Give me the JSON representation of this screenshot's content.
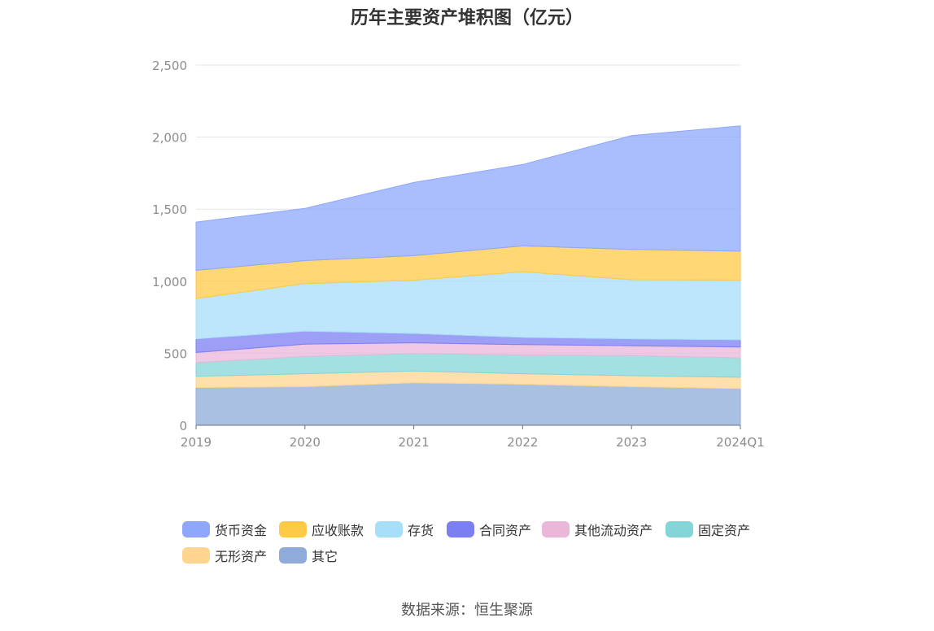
{
  "chart_data": {
    "type": "area",
    "title": "历年主要资产堆积图（亿元）",
    "stacked": true,
    "categories": [
      "2019",
      "2020",
      "2021",
      "2022",
      "2023",
      "2024Q1"
    ],
    "ylim": [
      0,
      2500
    ],
    "yticks": [
      "0",
      "500",
      "1,000",
      "1,500",
      "2,000",
      "2,500"
    ],
    "grid": true,
    "legend_position": "bottom",
    "series": [
      {
        "name": "其它",
        "color": "#8eabd9",
        "values": [
          262,
          268,
          295,
          285,
          268,
          255
        ]
      },
      {
        "name": "无形资产",
        "color": "#ffd591",
        "values": [
          78,
          90,
          82,
          73,
          76,
          78
        ]
      },
      {
        "name": "固定资产",
        "color": "#84d5d8",
        "values": [
          95,
          120,
          120,
          130,
          140,
          135
        ]
      },
      {
        "name": "其他流动资产",
        "color": "#eab7d9",
        "values": [
          70,
          85,
          75,
          72,
          68,
          75
        ]
      },
      {
        "name": "合同资产",
        "color": "#7b7ff2",
        "values": [
          95,
          90,
          65,
          50,
          48,
          50
        ]
      },
      {
        "name": "存货",
        "color": "#a7def8",
        "values": [
          280,
          330,
          370,
          455,
          410,
          415
        ]
      },
      {
        "name": "应收账款",
        "color": "#ffca45",
        "values": [
          195,
          160,
          170,
          180,
          210,
          200
        ]
      },
      {
        "name": "货币资金",
        "color": "#8ea7fb",
        "values": [
          335,
          362,
          508,
          565,
          790,
          870
        ]
      }
    ]
  },
  "legend_order": [
    "货币资金",
    "应收账款",
    "存货",
    "合同资产",
    "其他流动资产",
    "固定资产",
    "无形资产",
    "其它"
  ],
  "source": "数据来源：恒生聚源"
}
